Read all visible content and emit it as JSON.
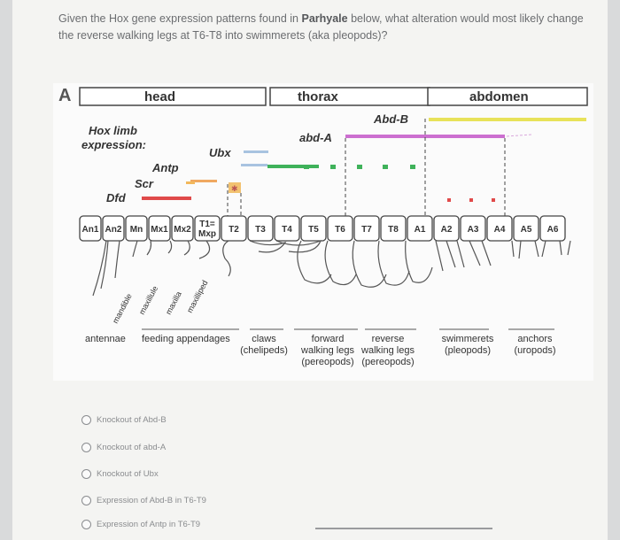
{
  "question": {
    "text_before": "Given the Hox gene expression patterns found in ",
    "species": "Parhyale",
    "text_after": " below, what alteration would most likely change the reverse walking legs at T6-T8 into swimmerets (aka pleopods)?"
  },
  "figure": {
    "panel_letter": "A",
    "regions": [
      "head",
      "thorax",
      "abdomen"
    ],
    "row_label": "Hox limb\nexpression:",
    "genes": [
      "Abd-B",
      "abd-A",
      "Ubx",
      "Antp",
      "Scr",
      "Dfd"
    ],
    "colors": {
      "Abd-B": "#e8e25a",
      "abd-A": "#cc6fd0",
      "Ubx": "#3fb25a",
      "Ubx_light": "#a8c3e0",
      "Antp": "#f0a860",
      "Scr": "#f2b85c",
      "Dfd": "#e04a4a"
    },
    "segments": [
      "An1",
      "An2",
      "Mn",
      "Mx1",
      "Mx2",
      "T1=\nMxp",
      "T2",
      "T3",
      "T4",
      "T5",
      "T6",
      "T7",
      "T8",
      "A1",
      "A2",
      "A3",
      "A4",
      "A5",
      "A6"
    ],
    "rotated_labels": [
      "mandible",
      "maxillule",
      "maxilla",
      "maxilliped"
    ],
    "legend": [
      "antennae",
      "feeding appendages",
      "claws\n(chelipeds)",
      "forward\nwalking legs\n(pereopods)",
      "reverse\nwalking legs\n(pereopods)",
      "swimmerets\n(pleopods)",
      "anchors\n(uropods)"
    ]
  },
  "options": [
    "Knockout of Abd-B",
    "Knockout of abd-A",
    "Knockout of Ubx",
    "Expression of Abd-B in T6-T9",
    "Expression of Antp in T6-T9"
  ]
}
